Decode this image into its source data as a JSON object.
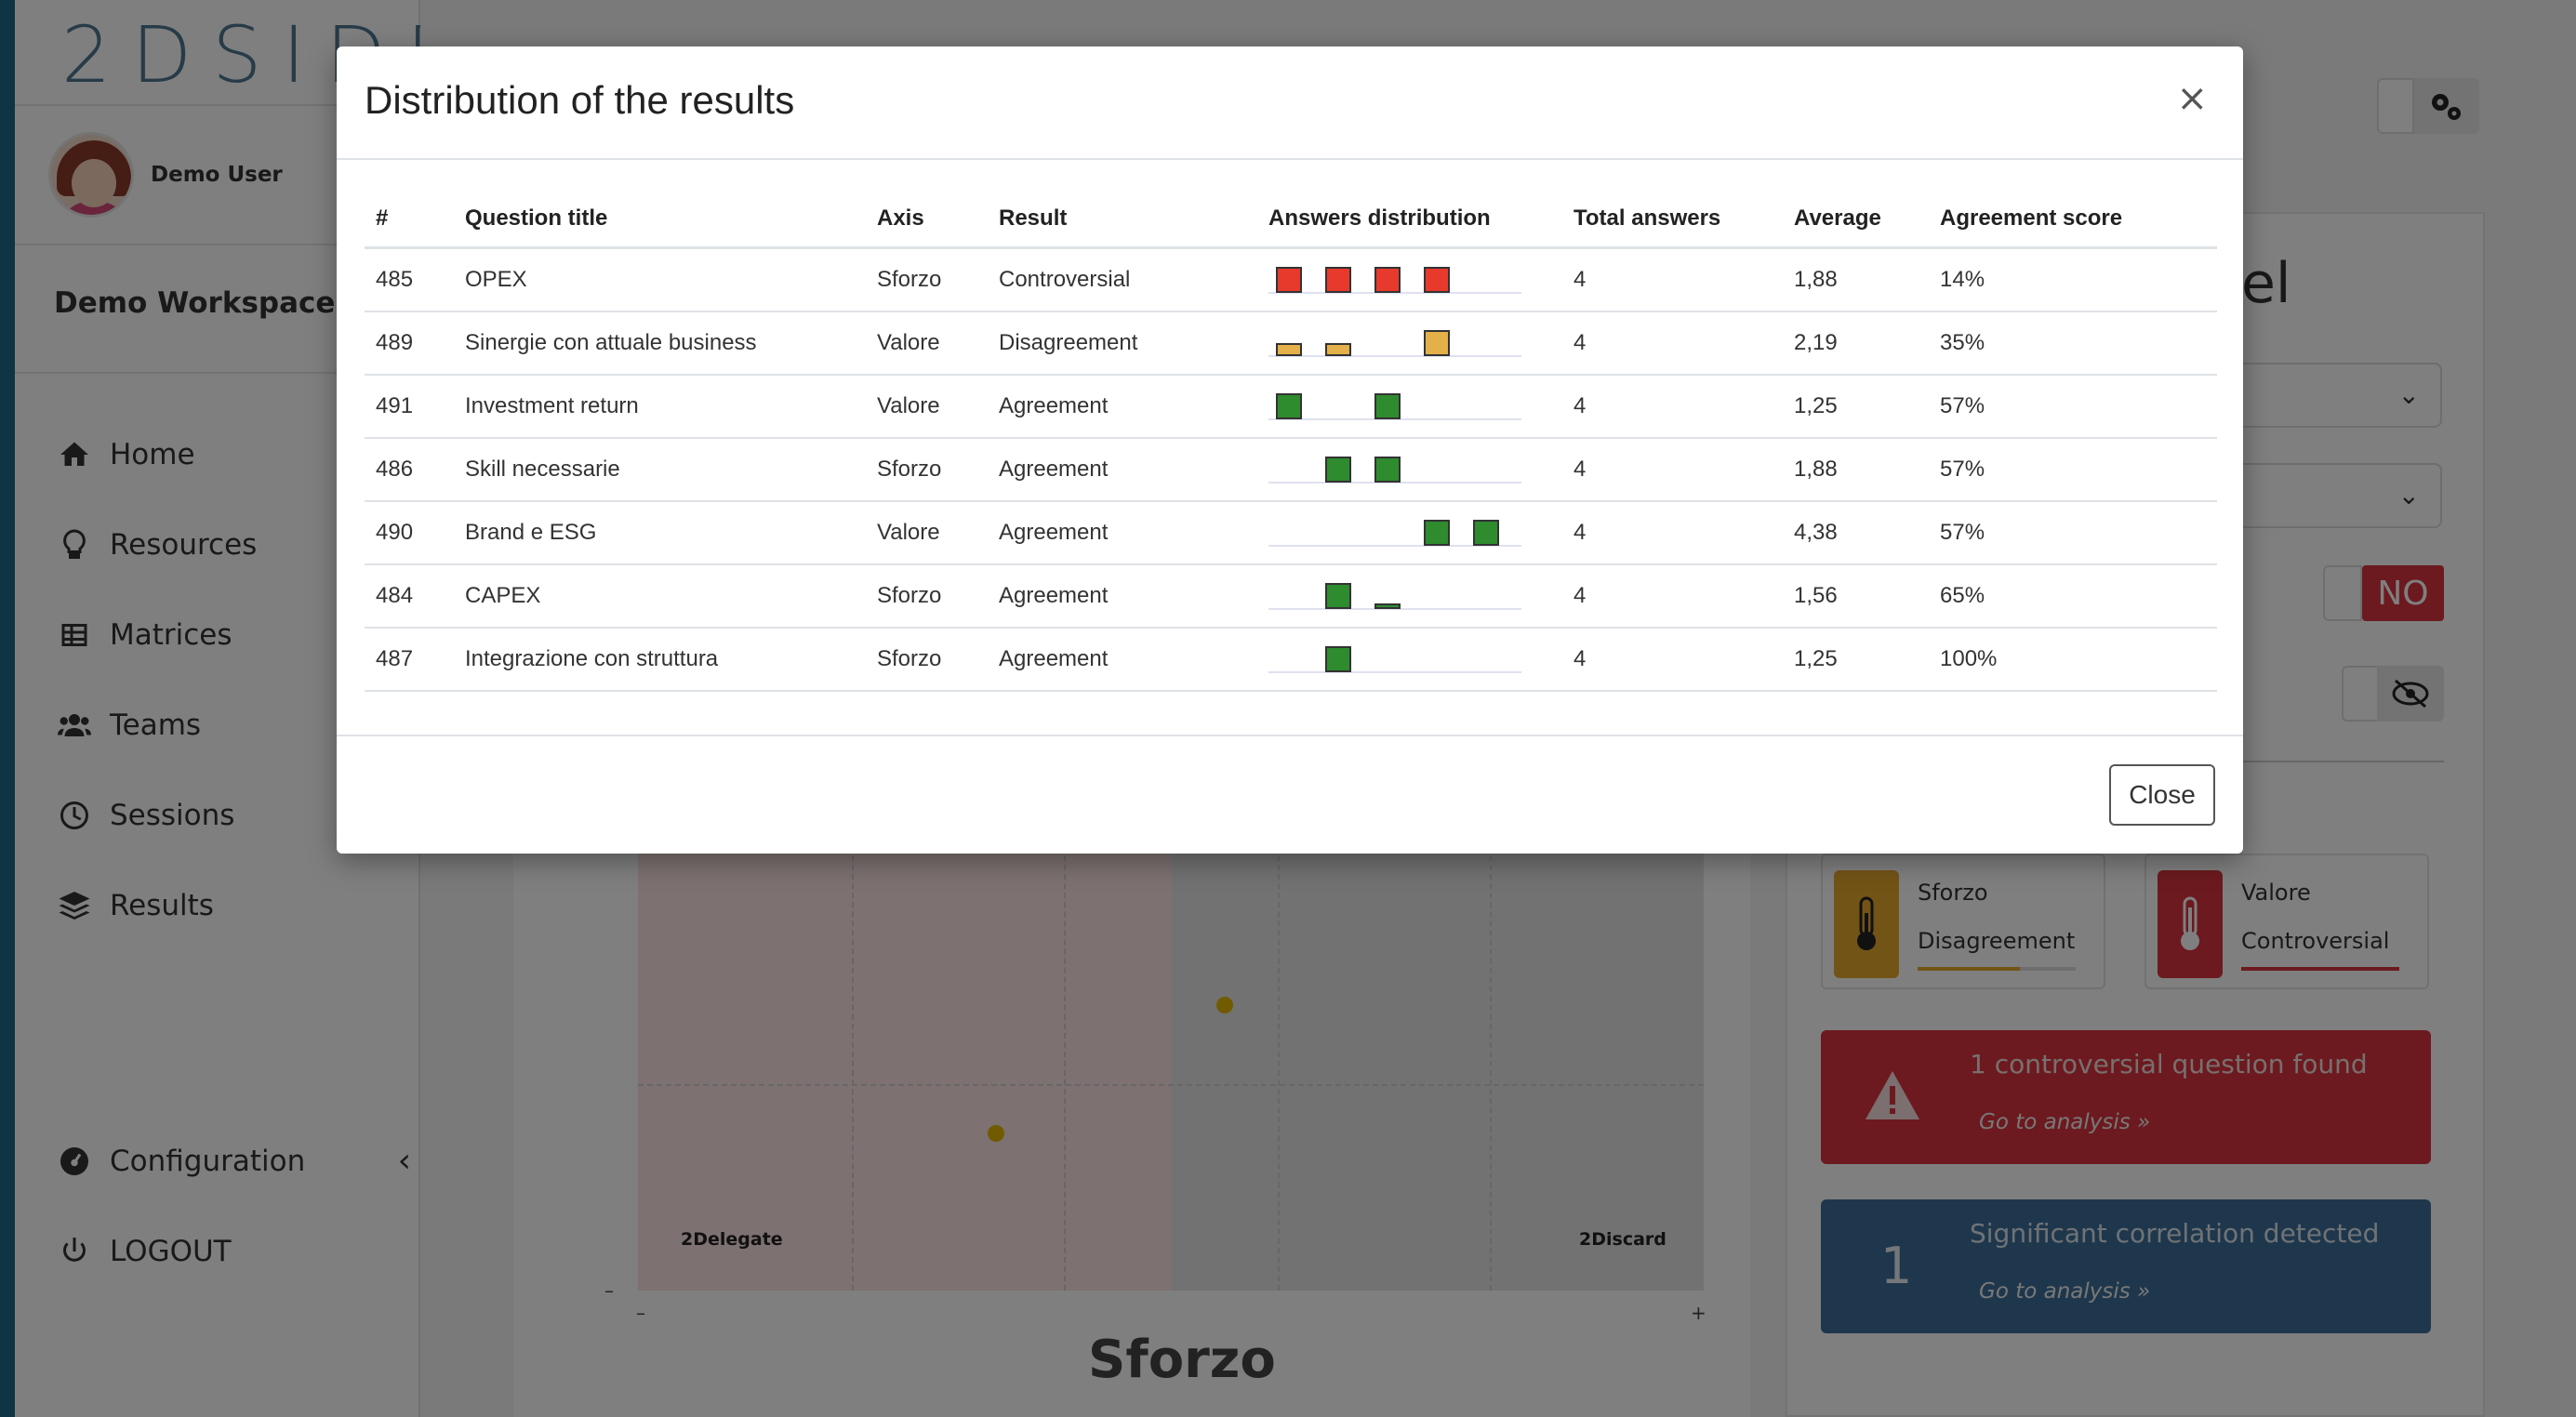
{
  "brand": {
    "logo_text": "2DSIDE"
  },
  "sidebar": {
    "user_name": "Demo User",
    "workspace": "Demo Workspace",
    "nav": [
      {
        "label": "Home",
        "icon": "home-icon"
      },
      {
        "label": "Resources",
        "icon": "lightbulb-icon"
      },
      {
        "label": "Matrices",
        "icon": "grid-icon"
      },
      {
        "label": "Teams",
        "icon": "users-icon"
      },
      {
        "label": "Sessions",
        "icon": "clock-icon"
      },
      {
        "label": "Results",
        "icon": "layers-icon"
      }
    ],
    "configuration": "Configuration",
    "logout": "LOGOUT"
  },
  "background": {
    "panel_title_fragment": "el",
    "toggle_no": "NO",
    "chart_corners": {
      "left": "2Delegate",
      "right": "2Discard"
    },
    "axis_minus": "–",
    "axis_plus": "+",
    "axis_title": "Sforzo",
    "cards": [
      {
        "line1": "Sforzo",
        "line2": "Disagreement",
        "color": "#e6a82e"
      },
      {
        "line1": "Valore",
        "line2": "Controversial",
        "color": "#d9343f"
      }
    ],
    "alerts": [
      {
        "title": "1 controversial question found",
        "link": "Go to analysis »",
        "color": "#d9343f"
      },
      {
        "number": "1",
        "title": "Significant correlation detected",
        "link": "Go to analysis »",
        "color": "#3f6e98"
      }
    ]
  },
  "modal": {
    "title": "Distribution of the results",
    "close_x": "×",
    "close_button": "Close",
    "columns": [
      "#",
      "Question title",
      "Axis",
      "Result",
      "Answers distribution",
      "Total answers",
      "Average",
      "Agreement score"
    ],
    "colors": {
      "Controversial": "#e8392d",
      "Disagreement": "#e3b04a",
      "Agreement": "#2e8b2e"
    },
    "rows": [
      {
        "id": "485",
        "title": "OPEX",
        "axis": "Sforzo",
        "result": "Controversial",
        "distribution": [
          1,
          1,
          1,
          1,
          0
        ],
        "total": "4",
        "average": "1,88",
        "agreement": "14%"
      },
      {
        "id": "489",
        "title": "Sinergie con attuale business",
        "axis": "Valore",
        "result": "Disagreement",
        "distribution": [
          0.5,
          0.5,
          0,
          1,
          0
        ],
        "total": "4",
        "average": "2,19",
        "agreement": "35%"
      },
      {
        "id": "491",
        "title": "Investment return",
        "axis": "Valore",
        "result": "Agreement",
        "distribution": [
          1,
          0,
          1,
          0,
          0
        ],
        "total": "4",
        "average": "1,25",
        "agreement": "57%"
      },
      {
        "id": "486",
        "title": "Skill necessarie",
        "axis": "Sforzo",
        "result": "Agreement",
        "distribution": [
          0,
          1,
          1,
          0,
          0
        ],
        "total": "4",
        "average": "1,88",
        "agreement": "57%"
      },
      {
        "id": "490",
        "title": "Brand e ESG",
        "axis": "Valore",
        "result": "Agreement",
        "distribution": [
          0,
          0,
          0,
          1,
          1
        ],
        "total": "4",
        "average": "4,38",
        "agreement": "57%"
      },
      {
        "id": "484",
        "title": "CAPEX",
        "axis": "Sforzo",
        "result": "Agreement",
        "distribution": [
          0,
          1,
          0.2,
          0,
          0
        ],
        "total": "4",
        "average": "1,56",
        "agreement": "65%"
      },
      {
        "id": "487",
        "title": "Integrazione con struttura",
        "axis": "Sforzo",
        "result": "Agreement",
        "distribution": [
          0,
          1,
          0,
          0,
          0
        ],
        "total": "4",
        "average": "1,25",
        "agreement": "100%"
      }
    ]
  }
}
